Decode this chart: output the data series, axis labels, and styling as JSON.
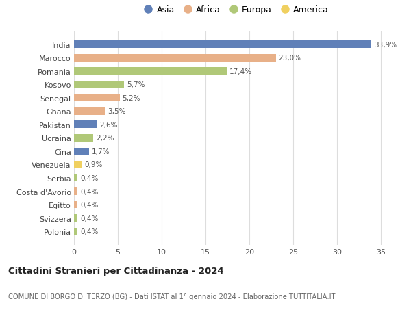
{
  "countries": [
    "India",
    "Marocco",
    "Romania",
    "Kosovo",
    "Senegal",
    "Ghana",
    "Pakistan",
    "Ucraina",
    "Cina",
    "Venezuela",
    "Serbia",
    "Costa d'Avorio",
    "Egitto",
    "Svizzera",
    "Polonia"
  ],
  "values": [
    33.9,
    23.0,
    17.4,
    5.7,
    5.2,
    3.5,
    2.6,
    2.2,
    1.7,
    0.9,
    0.4,
    0.4,
    0.4,
    0.4,
    0.4
  ],
  "labels": [
    "33,9%",
    "23,0%",
    "17,4%",
    "5,7%",
    "5,2%",
    "3,5%",
    "2,6%",
    "2,2%",
    "1,7%",
    "0,9%",
    "0,4%",
    "0,4%",
    "0,4%",
    "0,4%",
    "0,4%"
  ],
  "continents": [
    "Asia",
    "Africa",
    "Europa",
    "Europa",
    "Africa",
    "Africa",
    "Asia",
    "Europa",
    "Asia",
    "America",
    "Europa",
    "Africa",
    "Africa",
    "Europa",
    "Europa"
  ],
  "continent_colors": {
    "Asia": "#6080b8",
    "Africa": "#e8b088",
    "Europa": "#b0c878",
    "America": "#f0d060"
  },
  "legend_order": [
    "Asia",
    "Africa",
    "Europa",
    "America"
  ],
  "title": "Cittadini Stranieri per Cittadinanza - 2024",
  "subtitle": "COMUNE DI BORGO DI TERZO (BG) - Dati ISTAT al 1° gennaio 2024 - Elaborazione TUTTITALIA.IT",
  "xlim": [
    0,
    37
  ],
  "xticks": [
    0,
    5,
    10,
    15,
    20,
    25,
    30,
    35
  ],
  "background_color": "#ffffff",
  "grid_color": "#dddddd"
}
